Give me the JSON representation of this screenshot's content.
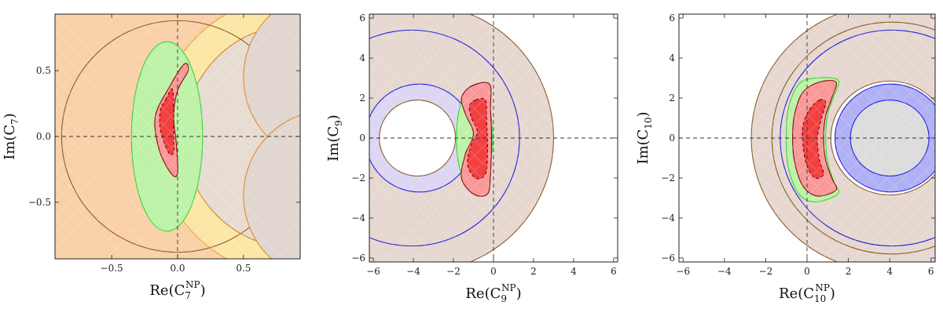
{
  "chart_data": [
    {
      "type": "contour",
      "xlabel_main": "Re(C",
      "xlabel_sub": "7",
      "xlabel_sup": "NP",
      "xlabel_close": ")",
      "ylabel_main": "Im(C",
      "ylabel_sub": "7",
      "ylabel_close": ")",
      "xlim": [
        -0.93,
        0.93
      ],
      "ylim": [
        -0.93,
        0.93
      ],
      "xticks": [
        -0.5,
        0.0,
        0.5
      ],
      "xtick_labels": [
        "−0.5",
        "0.0",
        "0.5"
      ],
      "yticks": [
        -0.5,
        0.0,
        0.5
      ],
      "ytick_labels": [
        "−0.5",
        "0.0",
        "0.5"
      ],
      "shapes": [
        {
          "kind": "rect",
          "x0": -0.93,
          "x1": 0.93,
          "y0": -0.93,
          "y1": 0.93,
          "fill": "#f9d0a8",
          "stroke": "none"
        },
        {
          "kind": "circle",
          "cx": 0.9,
          "cy": 0.0,
          "r": 1.07,
          "fill": "#fbe6a6",
          "stroke": "#e8a040"
        },
        {
          "kind": "circle",
          "cx": 0.9,
          "cy": 0.0,
          "r": 0.85,
          "fill": "#e7dcd2",
          "stroke": "#d08a30"
        },
        {
          "kind": "circle",
          "cx": 0.0,
          "cy": 0.0,
          "r": 0.88,
          "fill": "none",
          "stroke": "#8a5a2a"
        },
        {
          "kind": "circle",
          "cx": 1.15,
          "cy": 0.45,
          "r": 0.65,
          "fill": "#e1d6d0",
          "stroke": "#e08a20"
        },
        {
          "kind": "circle",
          "cx": 1.15,
          "cy": -0.45,
          "r": 0.65,
          "fill": "#e1d6d0",
          "stroke": "#e08a20"
        },
        {
          "kind": "ellipse",
          "cx": -0.08,
          "cy": 0.0,
          "rx": 0.27,
          "ry": 0.72,
          "fill": "#bdf2a8",
          "stroke": "#33d633"
        },
        {
          "kind": "path",
          "pts": [
            [
              -0.06,
              0.38
            ],
            [
              0.05,
              0.55
            ],
            [
              0.08,
              0.5
            ],
            [
              0.0,
              0.35
            ],
            [
              -0.03,
              0.15
            ],
            [
              -0.01,
              -0.05
            ],
            [
              0.0,
              -0.28
            ],
            [
              -0.05,
              -0.28
            ],
            [
              -0.14,
              -0.1
            ],
            [
              -0.17,
              0.15
            ]
          ],
          "fill": "#f99898",
          "stroke": "#8a0a0a"
        },
        {
          "kind": "path",
          "pts": [
            [
              -0.09,
              0.28
            ],
            [
              -0.04,
              0.36
            ],
            [
              -0.03,
              0.2
            ],
            [
              -0.03,
              0.0
            ],
            [
              -0.03,
              -0.12
            ],
            [
              -0.07,
              -0.12
            ],
            [
              -0.13,
              0.05
            ],
            [
              -0.13,
              0.2
            ]
          ],
          "fill": "#f24040",
          "stroke": "#7a0000",
          "dash": true
        }
      ]
    },
    {
      "type": "contour",
      "xlabel_main": "Re(C",
      "xlabel_sub": "9",
      "xlabel_sup": "NP",
      "xlabel_close": ")",
      "ylabel_main": "Im(C",
      "ylabel_sub": "9",
      "ylabel_close": ")",
      "xlim": [
        -6.2,
        6.2
      ],
      "ylim": [
        -6.2,
        6.2
      ],
      "xticks": [
        -6,
        -4,
        -2,
        0,
        2,
        4,
        6
      ],
      "xtick_labels": [
        "−6",
        "−4",
        "−2",
        "0",
        "2",
        "4",
        "6"
      ],
      "yticks": [
        -6,
        -4,
        -2,
        0,
        2,
        4,
        6
      ],
      "ytick_labels": [
        "−6",
        "−4",
        "−2",
        "0",
        "2",
        "4",
        "6"
      ],
      "shapes": [
        {
          "kind": "circle",
          "cx": -3.7,
          "cy": 0.0,
          "r": 6.7,
          "fill": "#e6d8d0",
          "stroke": "#8a5a2a"
        },
        {
          "kind": "circle",
          "cx": -4.1,
          "cy": 0.0,
          "r": 5.4,
          "fill": "none",
          "stroke": "#2222dd"
        },
        {
          "kind": "circle",
          "cx": -3.7,
          "cy": 0.0,
          "r": 2.7,
          "fill": "#dcd6f2",
          "stroke": "#2222dd"
        },
        {
          "kind": "circle",
          "cx": -3.8,
          "cy": 0.0,
          "r": 1.9,
          "fill": "#ffffff",
          "stroke": "#8a5a2a"
        },
        {
          "kind": "ellipse",
          "cx": -0.95,
          "cy": 0.0,
          "rx": 0.9,
          "ry": 2.65,
          "fill": "#bdf2a8",
          "stroke": "#33d633"
        },
        {
          "kind": "path",
          "pts": [
            [
              -1.1,
              2.6
            ],
            [
              -0.2,
              2.7
            ],
            [
              -0.15,
              1.5
            ],
            [
              -0.1,
              0.0
            ],
            [
              -0.15,
              -1.8
            ],
            [
              -0.3,
              -2.8
            ],
            [
              -1.0,
              -2.8
            ],
            [
              -1.6,
              -2.0
            ],
            [
              -1.4,
              -0.8
            ],
            [
              -1.0,
              0.2
            ],
            [
              -1.4,
              1.2
            ],
            [
              -1.6,
              2.0
            ]
          ],
          "fill": "#f99898",
          "stroke": "#8a0a0a"
        },
        {
          "kind": "path",
          "pts": [
            [
              -0.9,
              1.9
            ],
            [
              -0.4,
              1.9
            ],
            [
              -0.35,
              1.0
            ],
            [
              -0.3,
              -0.6
            ],
            [
              -0.4,
              -1.8
            ],
            [
              -0.9,
              -2.0
            ],
            [
              -1.3,
              -1.3
            ],
            [
              -1.1,
              -0.3
            ],
            [
              -0.8,
              0.3
            ],
            [
              -1.1,
              1.0
            ],
            [
              -1.2,
              1.6
            ]
          ],
          "fill": "#f24040",
          "stroke": "#7a0000",
          "dash": true
        }
      ]
    },
    {
      "type": "contour",
      "xlabel_main": "Re(C",
      "xlabel_sub": "10",
      "xlabel_sup": "NP",
      "xlabel_close": ")",
      "ylabel_main": "Im(C",
      "ylabel_sub": "10",
      "ylabel_close": ")",
      "xlim": [
        -6.2,
        6.2
      ],
      "ylim": [
        -6.2,
        6.2
      ],
      "xticks": [
        -6,
        -4,
        -2,
        0,
        2,
        4,
        6
      ],
      "xtick_labels": [
        "−6",
        "−4",
        "−2",
        "0",
        "2",
        "4",
        "6"
      ],
      "yticks": [
        -6,
        -4,
        -2,
        0,
        2,
        4,
        6
      ],
      "ytick_labels": [
        "−6",
        "−4",
        "−2",
        "0",
        "2",
        "4",
        "6"
      ],
      "shapes": [
        {
          "kind": "circle",
          "cx": 4.0,
          "cy": 0.0,
          "r": 6.7,
          "fill": "#e6d8d0",
          "stroke": "#8a5a2a"
        },
        {
          "kind": "circle",
          "cx": 4.1,
          "cy": 0.0,
          "r": 5.4,
          "fill": "none",
          "stroke": "#2222dd"
        },
        {
          "kind": "circle",
          "cx": 4.1,
          "cy": 0.0,
          "r": 5.8,
          "fill": "none",
          "stroke": "#8a5a2a"
        },
        {
          "kind": "circle",
          "cx": 4.0,
          "cy": 0.0,
          "r": 2.85,
          "fill": "#ffffff",
          "stroke": "#8a5a2a"
        },
        {
          "kind": "circle",
          "cx": 4.05,
          "cy": 0.0,
          "r": 2.7,
          "fill": "#b0b0f4",
          "stroke": "#2222dd"
        },
        {
          "kind": "circle",
          "cx": 4.0,
          "cy": 0.0,
          "r": 1.9,
          "fill": "#dcdcdc",
          "stroke": "#2222dd"
        },
        {
          "kind": "path",
          "pts": [
            [
              0.4,
              3.0
            ],
            [
              1.5,
              2.9
            ],
            [
              1.3,
              2.1
            ],
            [
              1.0,
              1.2
            ],
            [
              0.9,
              0.0
            ],
            [
              1.0,
              -1.2
            ],
            [
              1.3,
              -2.2
            ],
            [
              1.5,
              -2.8
            ],
            [
              0.4,
              -3.2
            ],
            [
              -0.4,
              -2.8
            ],
            [
              -0.9,
              -1.5
            ],
            [
              -1.0,
              0.0
            ],
            [
              -0.9,
              1.5
            ],
            [
              -0.4,
              2.7
            ]
          ],
          "fill": "#bdf2a8",
          "stroke": "#33d633"
        },
        {
          "kind": "path",
          "pts": [
            [
              0.6,
              2.8
            ],
            [
              1.4,
              2.8
            ],
            [
              1.2,
              2.0
            ],
            [
              0.9,
              1.1
            ],
            [
              0.8,
              0.0
            ],
            [
              0.9,
              -1.1
            ],
            [
              1.2,
              -2.0
            ],
            [
              1.4,
              -2.6
            ],
            [
              0.5,
              -2.9
            ],
            [
              -0.2,
              -2.4
            ],
            [
              -0.6,
              -1.2
            ],
            [
              -0.7,
              0.0
            ],
            [
              -0.6,
              1.2
            ],
            [
              -0.2,
              2.3
            ]
          ],
          "fill": "#f99898",
          "stroke": "#8a0a0a"
        },
        {
          "kind": "path",
          "pts": [
            [
              0.6,
              1.9
            ],
            [
              0.9,
              1.8
            ],
            [
              0.7,
              1.0
            ],
            [
              0.5,
              0.0
            ],
            [
              0.6,
              -1.1
            ],
            [
              0.8,
              -1.8
            ],
            [
              0.4,
              -2.0
            ],
            [
              0.0,
              -1.4
            ],
            [
              -0.2,
              -0.3
            ],
            [
              -0.2,
              0.6
            ],
            [
              0.1,
              1.4
            ]
          ],
          "fill": "#f24040",
          "stroke": "#7a0000",
          "dash": true
        }
      ]
    }
  ]
}
